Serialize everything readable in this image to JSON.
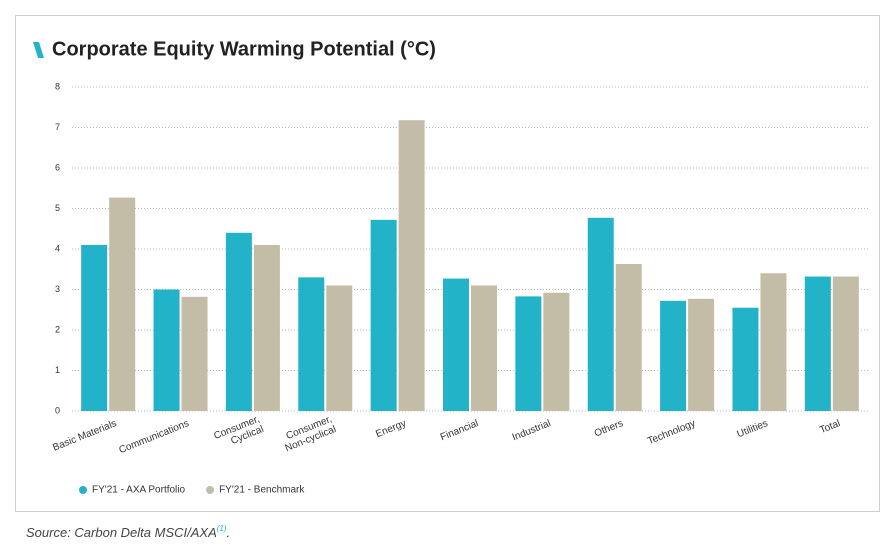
{
  "chart_data": {
    "type": "bar",
    "title": "Corporate Equity Warming Potential (°C)",
    "categories": [
      "Basic Materials",
      "Communications",
      "Consumer,\nCyclical",
      "Consumer,\nNon-cyclical",
      "Energy",
      "Financial",
      "Industrial",
      "Others",
      "Technology",
      "Utilities",
      "Total"
    ],
    "series": [
      {
        "name": "FY'21 - AXA Portfolio",
        "color": "#22b3c9",
        "values": [
          4.1,
          3.0,
          4.4,
          3.3,
          4.72,
          3.27,
          2.83,
          4.77,
          2.72,
          2.55,
          3.32
        ]
      },
      {
        "name": "FY'21 - Benchmark",
        "color": "#c3bca6",
        "values": [
          5.27,
          2.82,
          4.1,
          3.1,
          7.18,
          3.1,
          2.92,
          3.63,
          2.77,
          3.4,
          3.32
        ]
      }
    ],
    "ylim": [
      0,
      8
    ],
    "yticks": [
      0,
      1,
      2,
      3,
      4,
      5,
      6,
      7,
      8
    ],
    "grid": true
  },
  "source": {
    "text": "Source: Carbon Delta MSCI/AXA",
    "note": "(1)",
    "end": "."
  }
}
